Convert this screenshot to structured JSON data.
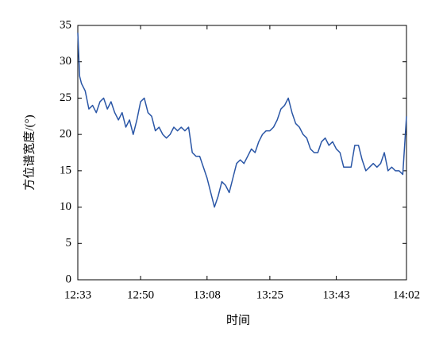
{
  "chart_data": {
    "type": "line",
    "xlabel": "时间",
    "ylabel": "方位谱宽度/(°)",
    "x": [
      0,
      0.5,
      1,
      2,
      3,
      4,
      5,
      6,
      7,
      8,
      9,
      10,
      11,
      12,
      13,
      14,
      15,
      16,
      17,
      18,
      19,
      20,
      21,
      22,
      23,
      24,
      25,
      26,
      27,
      28,
      29,
      30,
      31,
      32,
      33,
      34,
      35,
      36,
      37,
      38,
      39,
      40,
      41,
      42,
      43,
      44,
      45,
      46,
      47,
      48,
      49,
      50,
      51,
      52,
      53,
      54,
      55,
      56,
      57,
      58,
      59,
      60,
      61,
      62,
      63,
      64,
      65,
      66,
      67,
      68,
      69,
      70,
      71,
      72,
      73,
      74,
      75,
      76,
      77,
      78,
      79,
      80,
      81,
      82,
      83,
      84,
      85,
      86,
      87,
      88,
      89
    ],
    "series": [
      {
        "name": "方位谱宽度",
        "color": "#2a56a6",
        "values": [
          34,
          28,
          27,
          26,
          23.5,
          24,
          23,
          24.5,
          25,
          23.5,
          24.5,
          23,
          22,
          23,
          21,
          22,
          20,
          22,
          24.5,
          25,
          23,
          22.5,
          20.5,
          21,
          20,
          19.5,
          20,
          21,
          20.5,
          21,
          20.5,
          21,
          17.5,
          17,
          17,
          15.5,
          14,
          12,
          10,
          11.5,
          13.5,
          13,
          12,
          14,
          16,
          16.5,
          16,
          17,
          18,
          17.5,
          19,
          20,
          20.5,
          20.5,
          21,
          22,
          23.5,
          24,
          25,
          23,
          21.5,
          21,
          20,
          19.5,
          18,
          17.5,
          17.5,
          19,
          19.5,
          18.5,
          19,
          18,
          17.5,
          15.5,
          15.5,
          15.5,
          18.5,
          18.5,
          16.5,
          15,
          15.5,
          16,
          15.5,
          16,
          17.5,
          15,
          15.5,
          15,
          15,
          14.5,
          22.5
        ]
      }
    ],
    "xlim": [
      0,
      89
    ],
    "xticks": [
      {
        "value": 0,
        "label": "12:33"
      },
      {
        "value": 17,
        "label": "12:50"
      },
      {
        "value": 35,
        "label": "13:08"
      },
      {
        "value": 52,
        "label": "13:25"
      },
      {
        "value": 70,
        "label": "13:43"
      },
      {
        "value": 89,
        "label": "14:02"
      }
    ],
    "ylim": [
      0,
      35
    ],
    "yticks": [
      0,
      5,
      10,
      15,
      20,
      25,
      30,
      35
    ]
  }
}
